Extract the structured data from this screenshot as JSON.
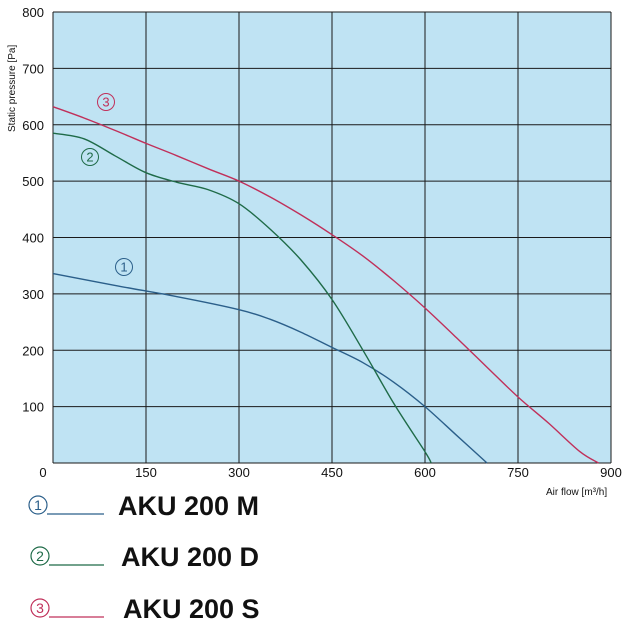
{
  "chart_data": {
    "type": "line",
    "xlabel": "Air flow [m³/h]",
    "ylabel": "Static pressure [Pa]",
    "xlim": [
      0,
      900
    ],
    "ylim": [
      0,
      800
    ],
    "x_ticks": [
      "0",
      "150",
      "300",
      "450",
      "600",
      "750",
      "900"
    ],
    "y_ticks": [
      "100",
      "200",
      "300",
      "400",
      "500",
      "600",
      "700",
      "800"
    ],
    "grid": true,
    "background": "#bfe3f3",
    "series": [
      {
        "name": "AKU 200 M",
        "marker": "①",
        "color": "#2b5f8a",
        "x": [
          0,
          100,
          200,
          300,
          350,
          400,
          450,
          500,
          550,
          600,
          650,
          700
        ],
        "y": [
          336,
          315,
          295,
          272,
          255,
          232,
          205,
          178,
          143,
          100,
          50,
          0
        ]
      },
      {
        "name": "AKU 200 D",
        "marker": "②",
        "color": "#1f6b48",
        "x": [
          0,
          50,
          100,
          150,
          200,
          250,
          300,
          350,
          400,
          450,
          500,
          550,
          600,
          610
        ],
        "y": [
          585,
          575,
          545,
          515,
          498,
          485,
          460,
          415,
          360,
          290,
          200,
          105,
          20,
          0
        ]
      },
      {
        "name": "AKU 200 S",
        "marker": "③",
        "color": "#c0305a",
        "x": [
          0,
          50,
          100,
          150,
          200,
          250,
          300,
          350,
          400,
          450,
          500,
          550,
          600,
          650,
          700,
          750,
          800,
          850,
          880
        ],
        "y": [
          632,
          612,
          590,
          567,
          545,
          522,
          500,
          472,
          440,
          405,
          367,
          323,
          275,
          223,
          170,
          117,
          70,
          20,
          0
        ]
      }
    ],
    "legend": {
      "placement": "bottom",
      "entries": [
        {
          "marker": "①",
          "label": "AKU 200 M",
          "color": "#2b5f8a"
        },
        {
          "marker": "②",
          "label": "AKU 200 D",
          "color": "#1f6b48"
        },
        {
          "marker": "③",
          "label": "AKU 200 S",
          "color": "#c0305a"
        }
      ]
    }
  }
}
